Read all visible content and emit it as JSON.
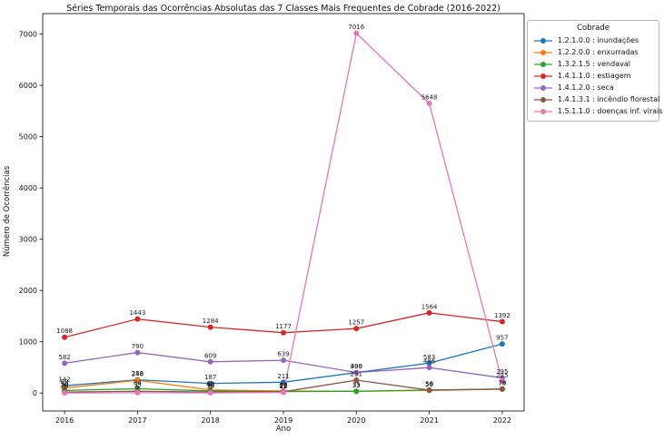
{
  "title": "Séries Temporais das Ocorrências Absolutas das 7 Classes Mais Frequentes de Cobrade (2016-2022)",
  "axes": {
    "xlabel": "Ano",
    "ylabel": "Número de Ocorrências",
    "x_ticks": [
      2016,
      2017,
      2018,
      2019,
      2020,
      2021,
      2022
    ],
    "y_ticks": [
      0,
      1000,
      2000,
      3000,
      4000,
      5000,
      6000,
      7000
    ]
  },
  "legend": {
    "title": "Cobrade",
    "position": "outside-upper-right",
    "entries": [
      "1.2.1.0.0 : inundações",
      "1.2.2.0.0 : enxurradas",
      "1.3.2.1.5 : vendaval",
      "1.4.1.1.0 : estiagem",
      "1.4.1.2.0 : seca",
      "1.4.1.3.1 : incêndio florestal",
      "1.5.1.1.0 : doenças inf. virais"
    ]
  },
  "chart_data": {
    "type": "line",
    "title": "Séries Temporais das Ocorrências Absolutas das 7 Classes Mais Frequentes de Cobrade (2016-2022)",
    "xlabel": "Ano",
    "ylabel": "Número de Ocorrências",
    "x": [
      2016,
      2017,
      2018,
      2019,
      2020,
      2021,
      2022
    ],
    "xlim": [
      2015.7,
      2022.3
    ],
    "ylim": [
      -350,
      7400
    ],
    "grid": false,
    "point_labels": true,
    "marker": "circle",
    "series": [
      {
        "name": "1.2.1.0.0 : inundações",
        "color": "#1f77b4",
        "values": [
          142,
          258,
          187,
          211,
          399,
          583,
          957
        ]
      },
      {
        "name": "1.2.2.0.0 : enxurradas",
        "color": "#ff7f0e",
        "values": [
          98,
          248,
          60,
          40,
          33,
          50,
          75
        ]
      },
      {
        "name": "1.3.2.1.5 : vendaval",
        "color": "#2ca02c",
        "values": [
          50,
          84,
          40,
          28,
          35,
          59,
          78
        ]
      },
      {
        "name": "1.4.1.1.0 : estiagem",
        "color": "#d62728",
        "values": [
          1088,
          1443,
          1284,
          1177,
          1257,
          1564,
          1392
        ]
      },
      {
        "name": "1.4.1.2.0 : seca",
        "color": "#9467bd",
        "values": [
          582,
          790,
          609,
          639,
          400,
          496,
          295
        ]
      },
      {
        "name": "1.4.1.3.1 : incêndio florestal",
        "color": "#8c564b",
        "values": [
          20,
          35,
          18,
          25,
          251,
          56,
          79
        ]
      },
      {
        "name": "1.5.1.1.0 : doenças inf. virais",
        "color": "#e377c2",
        "values": [
          1,
          6,
          3,
          12,
          7016,
          5648,
          225
        ]
      }
    ]
  }
}
